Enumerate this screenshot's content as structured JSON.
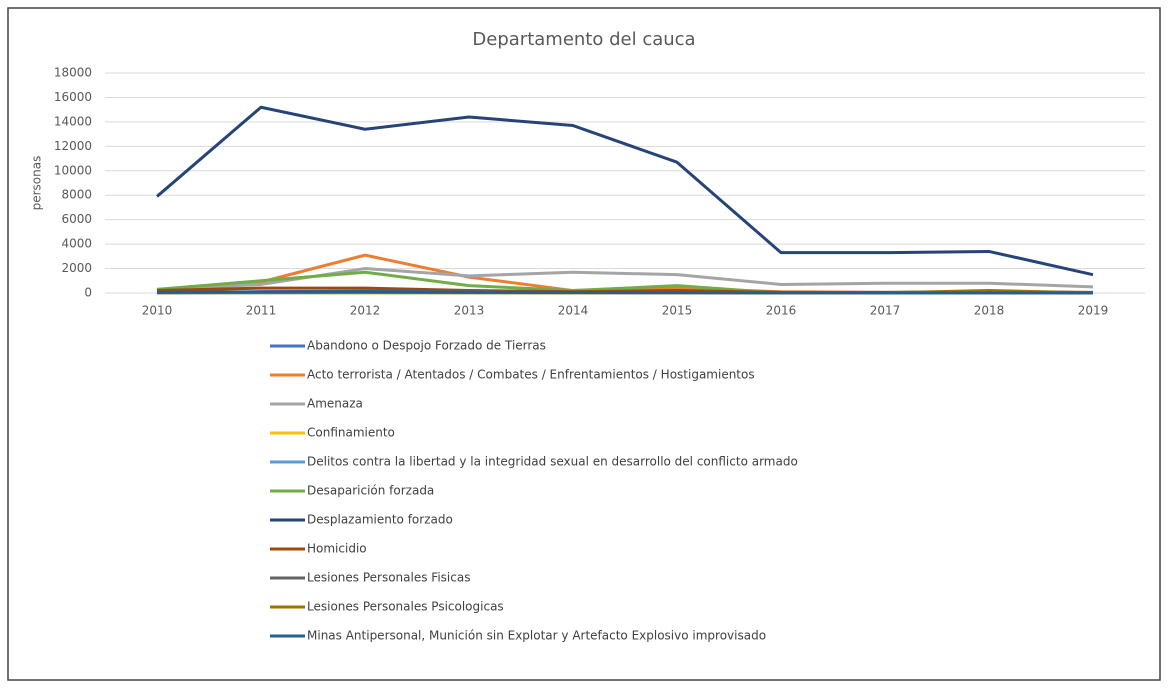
{
  "chart_data": {
    "type": "line",
    "title": "Departamento del cauca",
    "y_label": "personas",
    "categories": [
      "2010",
      "2011",
      "2012",
      "2013",
      "2014",
      "2015",
      "2016",
      "2017",
      "2018",
      "2019"
    ],
    "ylim": [
      0,
      18000
    ],
    "yticks": [
      0,
      2000,
      4000,
      6000,
      8000,
      10000,
      12000,
      14000,
      16000,
      18000
    ],
    "grid": true,
    "series": [
      {
        "name": "Abandono o Despojo Forzado de Tierras",
        "color": "#4472c4",
        "values": [
          50,
          100,
          100,
          50,
          20,
          20,
          10,
          10,
          10,
          0
        ]
      },
      {
        "name": "Acto terrorista / Atentados / Combates / Enfrentamientos / Hostigamientos",
        "color": "#ed7d31",
        "values": [
          200,
          900,
          3100,
          1300,
          200,
          400,
          100,
          50,
          100,
          0
        ]
      },
      {
        "name": "Amenaza",
        "color": "#a5a5a5",
        "values": [
          300,
          700,
          2000,
          1400,
          1700,
          1500,
          700,
          800,
          800,
          500
        ]
      },
      {
        "name": "Confinamiento",
        "color": "#ffc000",
        "values": [
          0,
          0,
          0,
          0,
          0,
          0,
          0,
          0,
          0,
          0
        ]
      },
      {
        "name": "Delitos contra la libertad y la integridad sexual en desarrollo del conflicto armado",
        "color": "#5b9bd5",
        "values": [
          10,
          20,
          30,
          20,
          20,
          20,
          10,
          10,
          10,
          10
        ]
      },
      {
        "name": "Desaparición forzada",
        "color": "#70ad47",
        "values": [
          300,
          1000,
          1700,
          600,
          200,
          600,
          0,
          0,
          0,
          0
        ]
      },
      {
        "name": "Desplazamiento forzado",
        "color": "#264478",
        "values": [
          7900,
          15200,
          13400,
          14400,
          13700,
          10700,
          3300,
          3300,
          3400,
          1500
        ]
      },
      {
        "name": "Homicidio",
        "color": "#9e480e",
        "values": [
          200,
          400,
          400,
          200,
          100,
          200,
          50,
          50,
          100,
          50
        ]
      },
      {
        "name": "Lesiones Personales Fisicas",
        "color": "#636363",
        "values": [
          50,
          100,
          150,
          100,
          50,
          50,
          20,
          20,
          30,
          10
        ]
      },
      {
        "name": "Lesiones Personales Psicologicas",
        "color": "#997300",
        "values": [
          20,
          50,
          50,
          30,
          20,
          20,
          10,
          10,
          200,
          10
        ]
      },
      {
        "name": "Minas Antipersonal, Munición sin Explotar y Artefacto Explosivo improvisado",
        "color": "#255e91",
        "values": [
          50,
          80,
          100,
          60,
          40,
          30,
          10,
          10,
          10,
          0
        ]
      }
    ]
  }
}
